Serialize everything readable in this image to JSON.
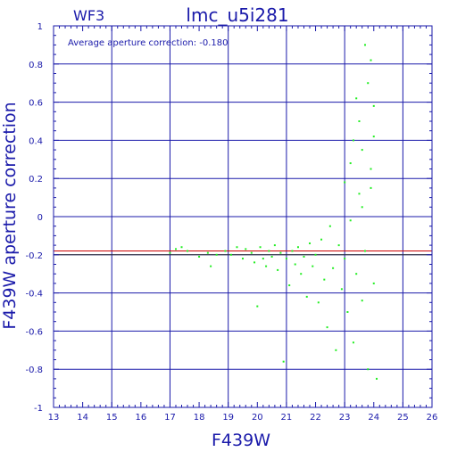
{
  "chart_data": {
    "type": "scatter",
    "title": "lmc_u5i281",
    "chip_label": "WF3",
    "annotation": "Average aperture correction: -0.180",
    "xlabel": "F439W",
    "ylabel": "F439W aperture correction",
    "xlim": [
      13,
      26
    ],
    "ylim": [
      -1,
      1
    ],
    "x_ticks": [
      13,
      14,
      15,
      16,
      17,
      18,
      19,
      20,
      21,
      22,
      23,
      24,
      25,
      26
    ],
    "y_ticks": [
      -1,
      -0.8,
      -0.6,
      -0.4,
      -0.2,
      0,
      0.2,
      0.4,
      0.6,
      0.8,
      1
    ],
    "y_tick_labels": [
      "-1",
      "-0.8",
      "-0.6",
      "-0.4",
      "-0.2",
      "0",
      "0.2",
      "0.4",
      "0.6",
      "0.8",
      "1"
    ],
    "grid": true,
    "reference_lines": [
      {
        "y": -0.18,
        "color": "#cc0000"
      },
      {
        "y": -0.2,
        "color": "#333333"
      }
    ],
    "colors": {
      "axes": "#1a1aaa",
      "grid": "#1a1aaa",
      "points": "#22ee22",
      "text": "#1a1aaa"
    },
    "series": [
      {
        "values": [
          [
            17.0,
            -0.19
          ],
          [
            17.2,
            -0.17
          ],
          [
            17.4,
            -0.16
          ],
          [
            17.6,
            -0.18
          ],
          [
            18.0,
            -0.21
          ],
          [
            18.3,
            -0.19
          ],
          [
            18.4,
            -0.26
          ],
          [
            18.6,
            -0.2
          ],
          [
            18.9,
            -0.18
          ],
          [
            19.1,
            -0.2
          ],
          [
            19.3,
            -0.16
          ],
          [
            19.5,
            -0.22
          ],
          [
            19.6,
            -0.17
          ],
          [
            19.8,
            -0.19
          ],
          [
            19.9,
            -0.24
          ],
          [
            20.0,
            -0.47
          ],
          [
            20.1,
            -0.16
          ],
          [
            20.2,
            -0.22
          ],
          [
            20.3,
            -0.26
          ],
          [
            20.4,
            -0.18
          ],
          [
            20.5,
            -0.21
          ],
          [
            20.6,
            -0.15
          ],
          [
            20.7,
            -0.28
          ],
          [
            20.8,
            -0.19
          ],
          [
            20.9,
            -0.76
          ],
          [
            21.0,
            -0.22
          ],
          [
            21.1,
            -0.36
          ],
          [
            21.2,
            -0.18
          ],
          [
            21.3,
            -0.25
          ],
          [
            21.4,
            -0.16
          ],
          [
            21.5,
            -0.3
          ],
          [
            21.6,
            -0.21
          ],
          [
            21.7,
            -0.42
          ],
          [
            21.8,
            -0.14
          ],
          [
            21.9,
            -0.26
          ],
          [
            22.0,
            -0.2
          ],
          [
            22.1,
            -0.45
          ],
          [
            22.2,
            -0.12
          ],
          [
            22.3,
            -0.33
          ],
          [
            22.4,
            -0.58
          ],
          [
            22.5,
            -0.05
          ],
          [
            22.6,
            -0.27
          ],
          [
            22.7,
            -0.7
          ],
          [
            22.8,
            -0.15
          ],
          [
            22.9,
            -0.38
          ],
          [
            23.0,
            -0.22
          ],
          [
            23.1,
            -0.5
          ],
          [
            23.2,
            -0.02
          ],
          [
            23.3,
            -0.66
          ],
          [
            23.4,
            -0.3
          ],
          [
            23.5,
            0.12
          ],
          [
            23.6,
            -0.44
          ],
          [
            23.7,
            -0.18
          ],
          [
            23.8,
            -0.8
          ],
          [
            23.9,
            0.25
          ],
          [
            24.0,
            -0.35
          ],
          [
            24.1,
            -0.85
          ],
          [
            23.7,
            0.9
          ],
          [
            23.9,
            0.82
          ],
          [
            24.0,
            0.58
          ],
          [
            23.8,
            0.7
          ],
          [
            24.0,
            0.42
          ],
          [
            23.6,
            0.35
          ],
          [
            23.9,
            0.15
          ],
          [
            23.5,
            0.5
          ],
          [
            23.4,
            0.62
          ],
          [
            23.2,
            0.28
          ],
          [
            23.0,
            0.18
          ],
          [
            23.3,
            0.4
          ],
          [
            23.6,
            0.05
          ]
        ]
      }
    ]
  }
}
